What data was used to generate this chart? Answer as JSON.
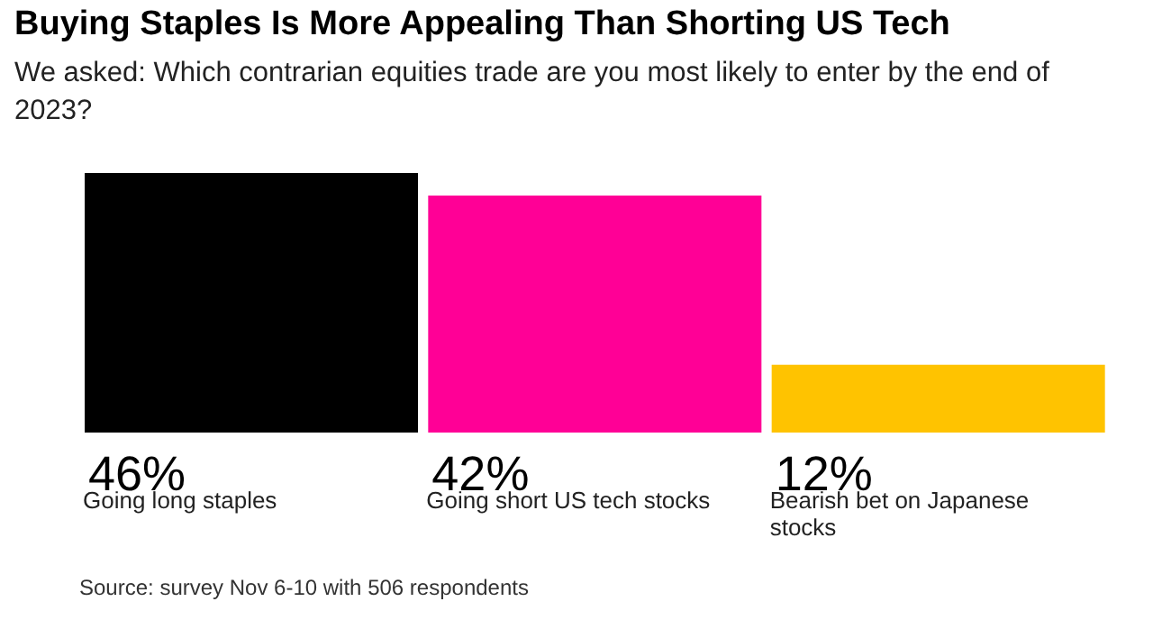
{
  "chart_data": {
    "type": "bar",
    "title": "Buying Staples Is More Appealing Than Shorting US Tech",
    "subtitle": "We asked: Which contrarian equities trade are you most likely to enter by the end of 2023?",
    "categories": [
      "Going long staples",
      "Going short US tech stocks",
      "Bearish bet on Japanese stocks"
    ],
    "values": [
      46,
      42,
      12
    ],
    "colors": [
      "#000000",
      "#ff0096",
      "#ffc300"
    ],
    "value_labels": [
      "46%",
      "42%",
      "12%"
    ],
    "annotations": [
      "Source: survey Nov 6-10 with 506 respondents"
    ],
    "legend": false,
    "grid": false
  }
}
